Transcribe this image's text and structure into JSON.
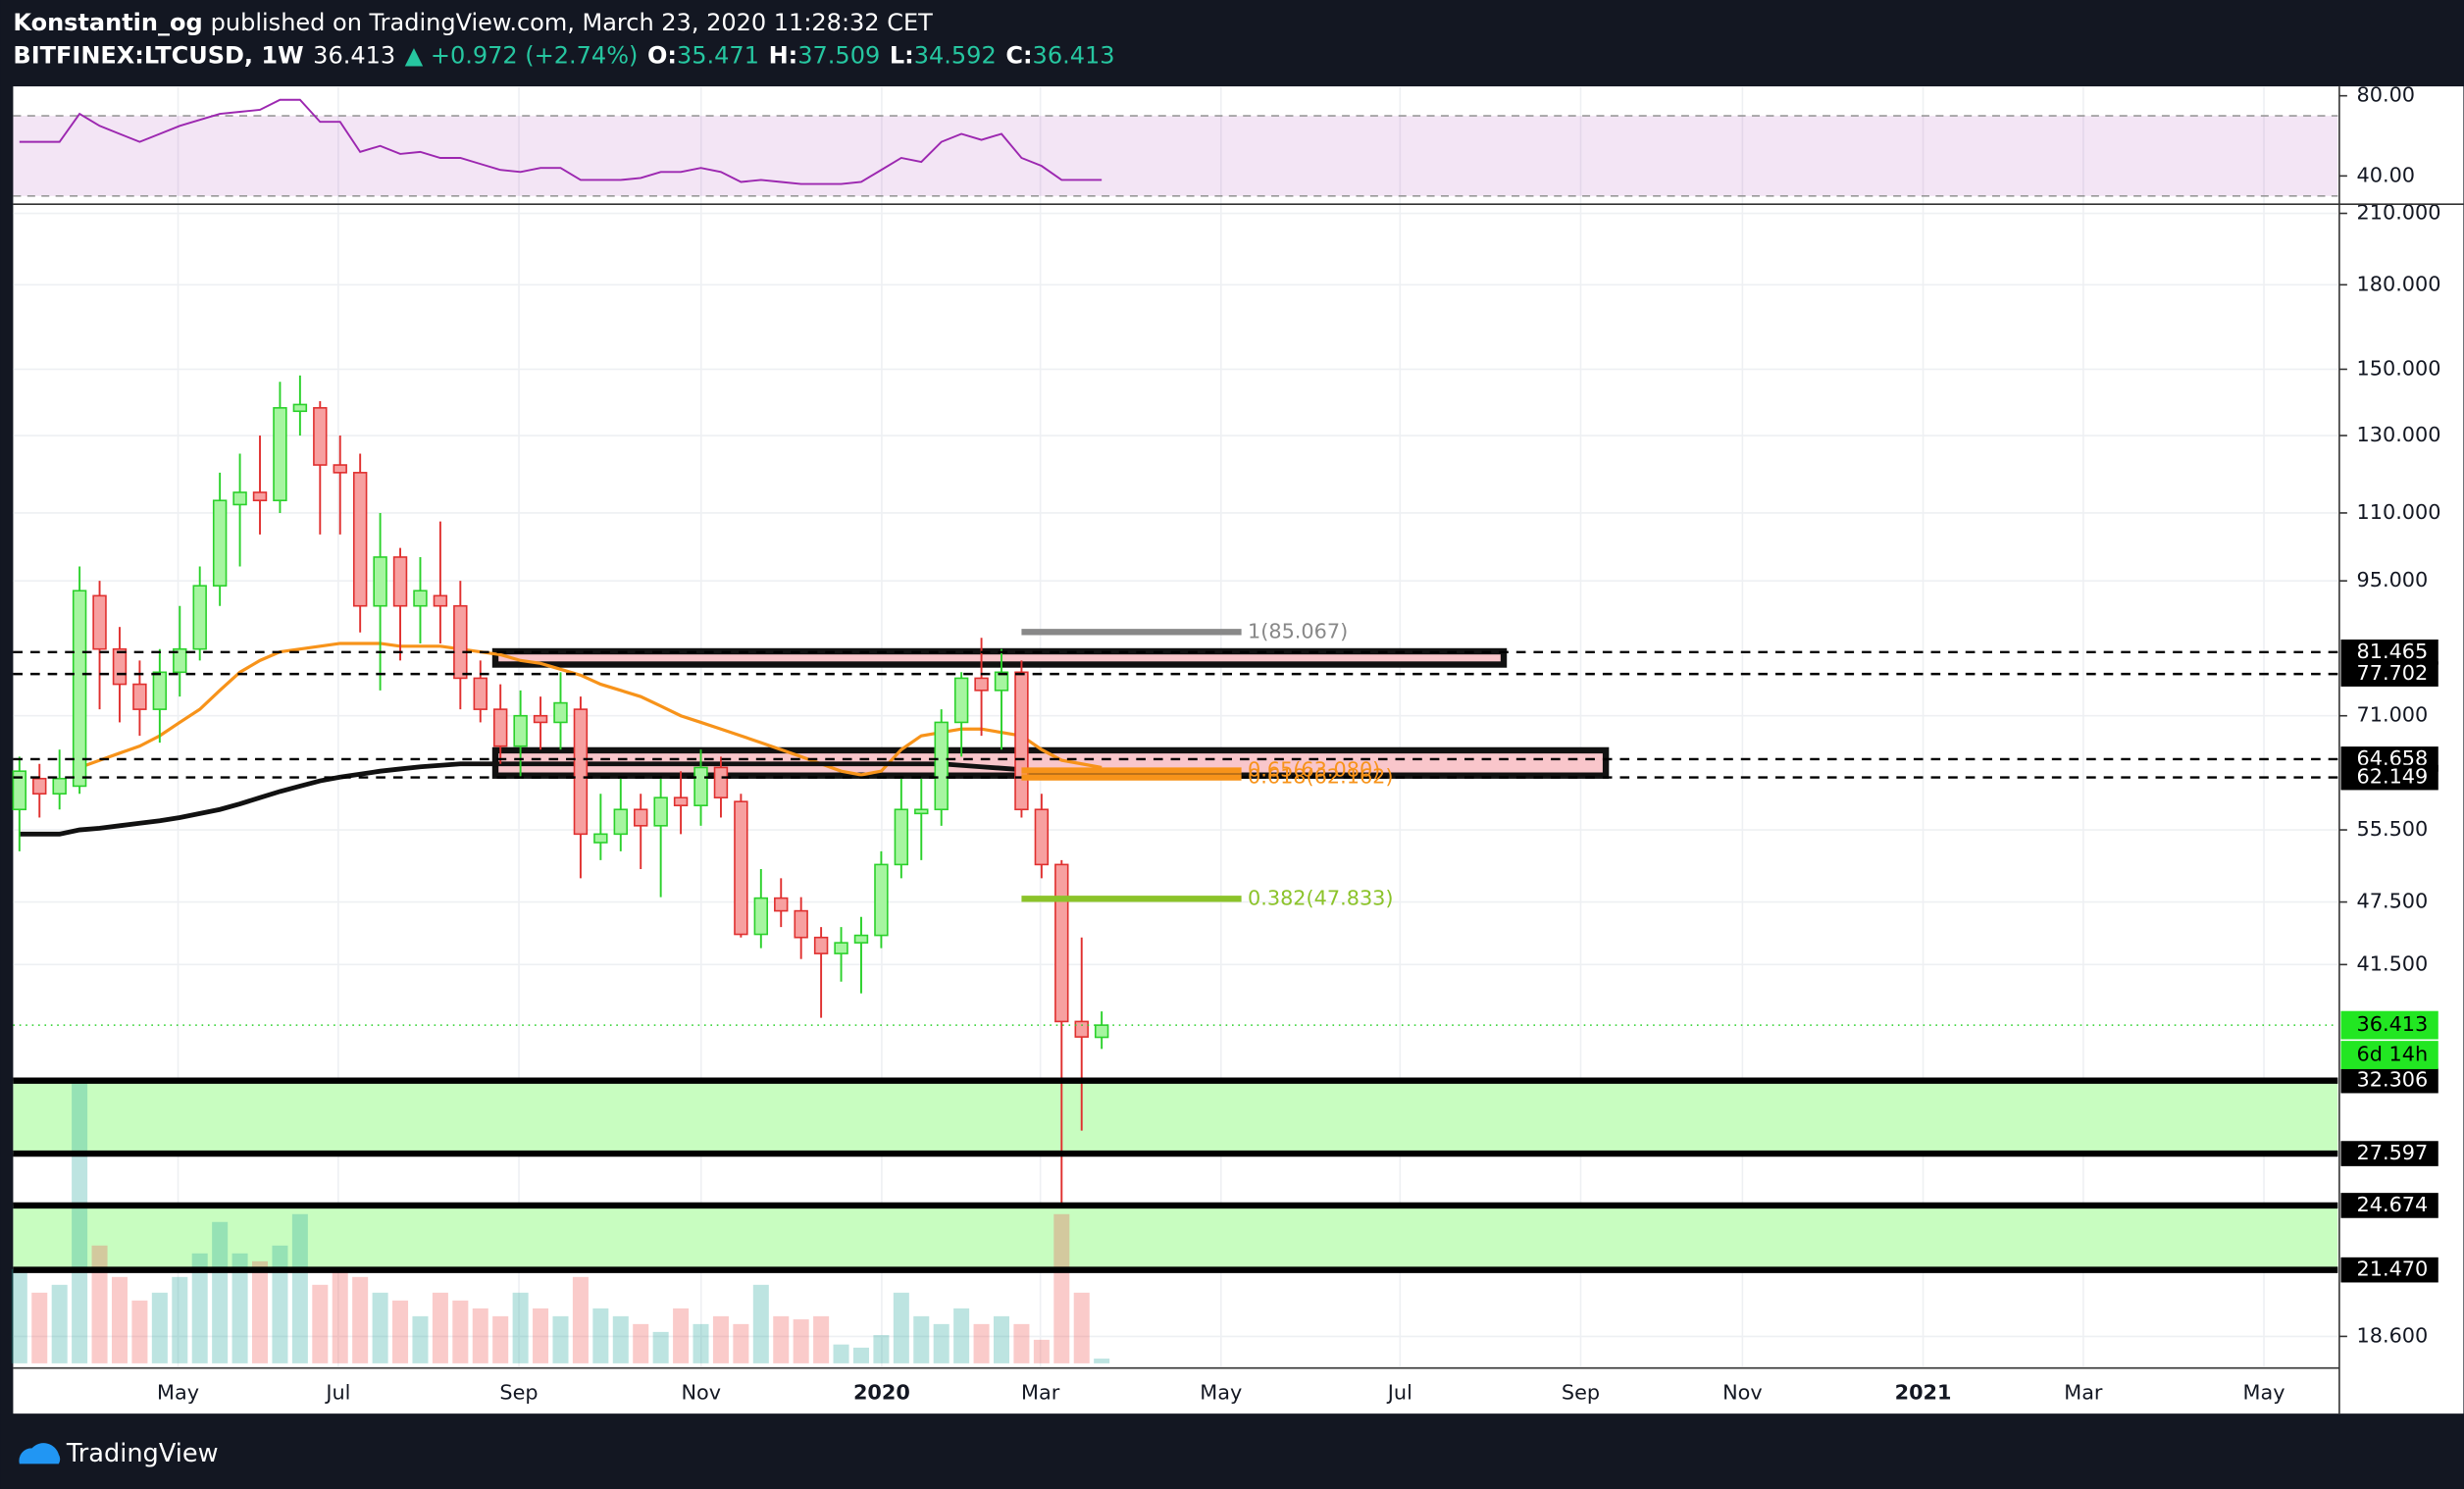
{
  "header": {
    "author": "Konstantin_og",
    "published": "published on TradingView.com, March 23, 2020 11:28:32 CET",
    "symbol": "BITFINEX:LTCUSD, 1W",
    "change": "▲ +0.972 (+2.74%)",
    "keys": [
      "O:",
      "H:",
      "L:",
      "C:"
    ]
  },
  "chart_data": {
    "type": "candlestick",
    "log": true,
    "grid": true,
    "open": [
      58,
      62,
      60,
      61,
      92,
      82,
      76,
      72,
      78,
      82,
      94,
      112,
      115,
      113,
      137,
      138,
      122,
      120,
      90,
      100,
      90,
      92,
      90,
      77,
      72,
      66.5,
      71,
      70,
      72,
      54,
      55,
      58,
      56,
      59.5,
      58.5,
      63.5,
      59,
      44.3,
      47.9,
      46.6,
      44,
      42.5,
      43.5,
      44.2,
      51.5,
      57.5,
      58,
      70,
      77,
      75,
      78,
      58,
      51.5,
      36.7,
      35.471
    ],
    "high": [
      65,
      64,
      66,
      98,
      95,
      86,
      80,
      82,
      90,
      98,
      120,
      125,
      130,
      146,
      148,
      140,
      130,
      125,
      110,
      102,
      100,
      108,
      95,
      80,
      76,
      75,
      74,
      78,
      74,
      60,
      62,
      60,
      62,
      63,
      66,
      65,
      60,
      51,
      50,
      48,
      45,
      45,
      46,
      53,
      62,
      62,
      72,
      78,
      84,
      82,
      80,
      60,
      52,
      44,
      37.509
    ],
    "low": [
      53,
      57,
      58,
      60,
      72,
      70,
      68,
      67,
      74,
      80,
      90,
      98,
      105,
      110,
      130,
      105,
      105,
      85,
      75,
      80,
      83,
      83,
      72,
      70,
      64,
      62,
      66,
      66,
      50,
      52,
      53,
      51,
      48,
      55,
      56,
      57,
      44,
      43,
      45,
      42,
      37,
      40,
      39,
      43,
      50,
      52,
      56,
      65,
      68,
      66,
      57,
      50,
      24.7,
      29,
      34.592
    ],
    "close": [
      63,
      60,
      62,
      93,
      82,
      76,
      72,
      78,
      82,
      94,
      113,
      115,
      113,
      138,
      139,
      122,
      120,
      90,
      100,
      90,
      93,
      90,
      77,
      72,
      66.5,
      71,
      70,
      73,
      55,
      55,
      58,
      56,
      59.5,
      58.5,
      63.5,
      59.5,
      44.3,
      47.9,
      46.6,
      44,
      42.5,
      43.5,
      44.2,
      51.5,
      58,
      58,
      70,
      77,
      75,
      78,
      58,
      51.5,
      36.7,
      35.5,
      36.413
    ],
    "up_color": "#2bd12b",
    "down_color": "#e0302f",
    "volume": [
      60,
      45,
      50,
      180,
      75,
      55,
      40,
      45,
      55,
      70,
      90,
      70,
      65,
      75,
      95,
      50,
      60,
      55,
      45,
      40,
      30,
      45,
      40,
      35,
      30,
      45,
      35,
      30,
      55,
      35,
      30,
      25,
      20,
      35,
      25,
      30,
      25,
      50,
      30,
      28,
      30,
      12,
      10,
      18,
      45,
      30,
      25,
      35,
      25,
      30,
      25,
      15,
      95,
      45,
      3
    ],
    "moving_averages": [
      {
        "color": "#f7931a",
        "values": [
          null,
          null,
          null,
          63.5,
          64.5,
          65.5,
          66.5,
          68,
          70,
          72,
          75,
          78,
          80,
          81.5,
          82,
          82.5,
          83,
          83,
          83,
          82.5,
          82.5,
          82.5,
          82,
          81.5,
          81,
          80,
          79.5,
          78.5,
          77.5,
          76,
          75,
          74,
          72.5,
          71,
          70,
          69,
          68,
          67,
          66,
          65,
          64,
          63,
          62.5,
          63,
          66,
          68,
          68.5,
          69,
          69,
          68.5,
          68,
          66,
          64.5,
          64,
          63.5
        ]
      },
      {
        "color": "#111111",
        "values": [
          55,
          55,
          55,
          55.5,
          55.7,
          56,
          56.3,
          56.6,
          57,
          57.5,
          58,
          58.7,
          59.5,
          60.3,
          61,
          61.7,
          62.2,
          62.6,
          63,
          63.3,
          63.6,
          63.8,
          64,
          64,
          64,
          64,
          64,
          64,
          64,
          64,
          64,
          64,
          64,
          64,
          64,
          64,
          64,
          64,
          64,
          64,
          64,
          64,
          64,
          64,
          64,
          64,
          64,
          63.8,
          63.6,
          63.4,
          63.2,
          63,
          62.8,
          62.6,
          62.4
        ]
      }
    ],
    "ylim": [
      17.43,
      214.2
    ],
    "yticks": [
      {
        "value": 210,
        "label": "210.000"
      },
      {
        "value": 180,
        "label": "180.000"
      },
      {
        "value": 150,
        "label": "150.000"
      },
      {
        "value": 130,
        "label": "130.000"
      },
      {
        "value": 110,
        "label": "110.000"
      },
      {
        "value": 95,
        "label": "95.000"
      },
      {
        "value": 71,
        "label": "71.000"
      },
      {
        "value": 55.5,
        "label": "55.500"
      },
      {
        "value": 47.5,
        "label": "47.500"
      },
      {
        "value": 41.5,
        "label": "41.500"
      },
      {
        "value": 18.6,
        "label": "18.600"
      }
    ],
    "levels": [
      81.465,
      77.702,
      64.658,
      62.149,
      32.306,
      27.597,
      24.674,
      {
        "value": 21.47,
        "label": "21.470"
      }
    ],
    "countdown": "6d 14h",
    "boxes": [
      {
        "low": 79.3,
        "high": 81.6
      },
      {
        "low": 62.4,
        "high": 65.9
      }
    ],
    "fib": [
      {
        "value": 85.067,
        "label": "1(85.067)",
        "color": "#888888"
      },
      {
        "value": 63.08,
        "label": "0.65(63.080)",
        "color": "#f7931a"
      },
      {
        "value": 62.162,
        "label": "0.618(62.162)",
        "color": "#f7931a"
      },
      {
        "value": 47.833,
        "label": "0.382(47.833)",
        "color": "#8bc32a"
      }
    ],
    "x_axis_labels": [
      "May",
      "Jul",
      "Sep",
      "Nov",
      "2020",
      "Mar",
      "May",
      "Jul",
      "Sep",
      "Nov",
      "2021",
      "Mar",
      "May"
    ],
    "rsi": {
      "color": "#9c27b0",
      "values": [
        57,
        57,
        57,
        71,
        65,
        61,
        57,
        61,
        65,
        68,
        71,
        72,
        73,
        78,
        78,
        67,
        67,
        52,
        55,
        51,
        52,
        49,
        49,
        46,
        43,
        42,
        44,
        44,
        38,
        38,
        38,
        39,
        42,
        42,
        44,
        42,
        37,
        38,
        37,
        36,
        36,
        36,
        37,
        43,
        49,
        47,
        57,
        61,
        58,
        61,
        49,
        45,
        38,
        38,
        38
      ],
      "ylim": [
        25.9,
        84.7
      ],
      "bands": [
        30,
        70
      ],
      "yticks": [
        {
          "value": 80,
          "label": "80.00"
        },
        {
          "value": 40,
          "label": "40.00"
        }
      ]
    }
  },
  "footer": {
    "brand": "TradingView"
  }
}
